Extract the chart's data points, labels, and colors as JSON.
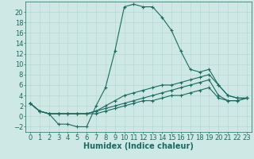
{
  "background_color": "#cde8e5",
  "grid_color": "#b8d8d4",
  "line_color": "#1a6b5e",
  "xlabel": "Humidex (Indice chaleur)",
  "xlabel_fontsize": 7,
  "tick_fontsize": 6,
  "xlim": [
    -0.5,
    23.5
  ],
  "ylim": [
    -3,
    22
  ],
  "yticks": [
    -2,
    0,
    2,
    4,
    6,
    8,
    10,
    12,
    14,
    16,
    18,
    20
  ],
  "xticks": [
    0,
    1,
    2,
    3,
    4,
    5,
    6,
    7,
    8,
    9,
    10,
    11,
    12,
    13,
    14,
    15,
    16,
    17,
    18,
    19,
    20,
    21,
    22,
    23
  ],
  "series1_x": [
    0,
    1,
    2,
    3,
    4,
    5,
    6,
    7,
    8,
    9,
    10,
    11,
    12,
    13,
    14,
    15,
    16,
    17,
    18,
    19,
    20,
    21,
    22,
    23
  ],
  "series1_y": [
    2.5,
    1.0,
    0.5,
    -1.5,
    -1.5,
    -2.0,
    -2.0,
    2.0,
    5.5,
    12.5,
    21.0,
    21.5,
    21.0,
    21.0,
    19.0,
    16.5,
    12.5,
    9.0,
    8.5,
    9.0,
    6.0,
    4.0,
    3.5,
    3.5
  ],
  "series2_x": [
    0,
    1,
    2,
    3,
    4,
    5,
    6,
    7,
    8,
    9,
    10,
    11,
    12,
    13,
    14,
    15,
    16,
    17,
    18,
    19,
    20,
    21,
    22,
    23
  ],
  "series2_y": [
    2.5,
    1.0,
    0.5,
    0.5,
    0.5,
    0.5,
    0.5,
    1.0,
    2.0,
    3.0,
    4.0,
    4.5,
    5.0,
    5.5,
    6.0,
    6.0,
    6.5,
    7.0,
    7.5,
    8.0,
    6.0,
    4.0,
    3.5,
    3.5
  ],
  "series3_x": [
    0,
    1,
    2,
    3,
    4,
    5,
    6,
    7,
    8,
    9,
    10,
    11,
    12,
    13,
    14,
    15,
    16,
    17,
    18,
    19,
    20,
    21,
    22,
    23
  ],
  "series3_y": [
    2.5,
    1.0,
    0.5,
    0.5,
    0.5,
    0.5,
    0.5,
    1.0,
    1.5,
    2.0,
    2.5,
    3.0,
    3.5,
    4.0,
    4.5,
    5.0,
    5.5,
    6.0,
    6.5,
    7.0,
    4.0,
    3.0,
    3.0,
    3.5
  ],
  "series4_x": [
    0,
    1,
    2,
    3,
    4,
    5,
    6,
    7,
    8,
    9,
    10,
    11,
    12,
    13,
    14,
    15,
    16,
    17,
    18,
    19,
    20,
    21,
    22,
    23
  ],
  "series4_y": [
    2.5,
    1.0,
    0.5,
    0.5,
    0.5,
    0.5,
    0.5,
    0.5,
    1.0,
    1.5,
    2.0,
    2.5,
    3.0,
    3.0,
    3.5,
    4.0,
    4.0,
    4.5,
    5.0,
    5.5,
    3.5,
    3.0,
    3.0,
    3.5
  ]
}
